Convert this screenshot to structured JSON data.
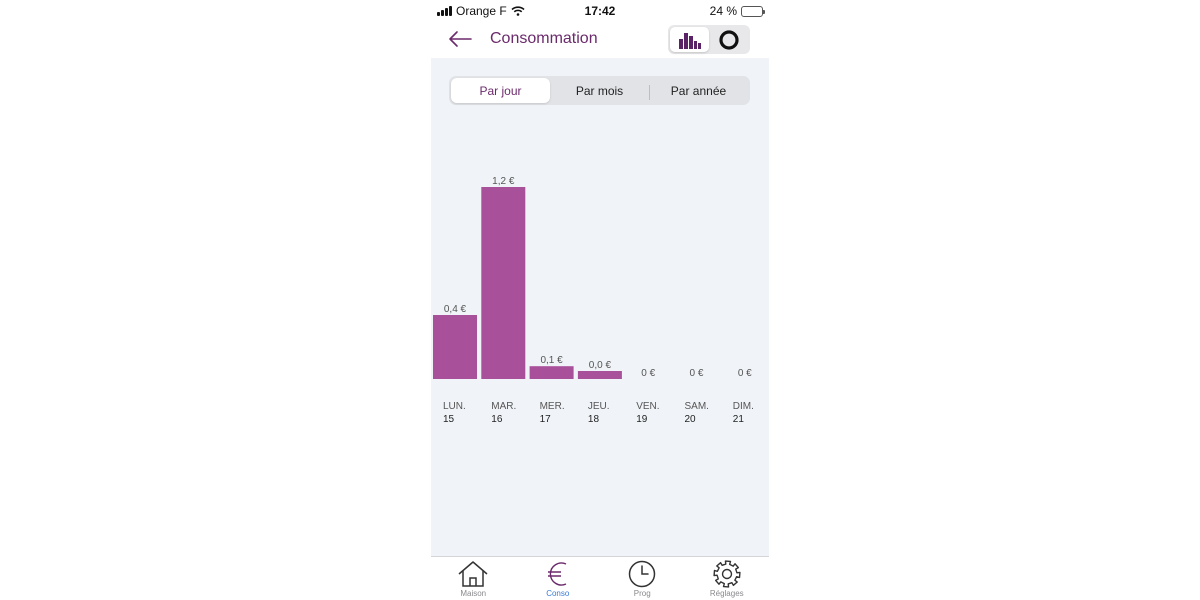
{
  "status_bar": {
    "carrier": "Orange F",
    "time": "17:42",
    "battery": "24 %",
    "battery_level": 0.24
  },
  "header": {
    "title": "Consommation",
    "views": [
      "bar-chart",
      "ring-chart"
    ],
    "active_view": "bar-chart"
  },
  "segment": {
    "items": [
      "Par jour",
      "Par mois",
      "Par année"
    ],
    "active": "Par jour"
  },
  "chart_data": {
    "type": "bar",
    "categories": [
      "LUN.",
      "MAR.",
      "MER.",
      "JEU.",
      "VEN.",
      "SAM.",
      "DIM."
    ],
    "day_numbers": [
      "15",
      "16",
      "17",
      "18",
      "19",
      "20",
      "21"
    ],
    "values": [
      0.4,
      1.2,
      0.08,
      0.05,
      0,
      0,
      0
    ],
    "value_labels": [
      "0,4 €",
      "1,2 €",
      "0,1 €",
      "0,0 €",
      "0 €",
      "0 €",
      "0 €"
    ],
    "ylim": [
      0,
      1.2
    ],
    "bar_color": "#a9509a",
    "label_color": "#555555",
    "grid": false
  },
  "tabbar": {
    "tabs": [
      {
        "label": "Maison",
        "icon": "house-icon"
      },
      {
        "label": "Conso",
        "icon": "euro-icon"
      },
      {
        "label": "Prog",
        "icon": "clock-icon"
      },
      {
        "label": "Réglages",
        "icon": "gear-icon"
      }
    ],
    "active": "Conso"
  },
  "colors": {
    "brand": "#6b2a6b",
    "accent_blue": "#3a7bd5",
    "panel_bg": "#f0f3f7"
  }
}
